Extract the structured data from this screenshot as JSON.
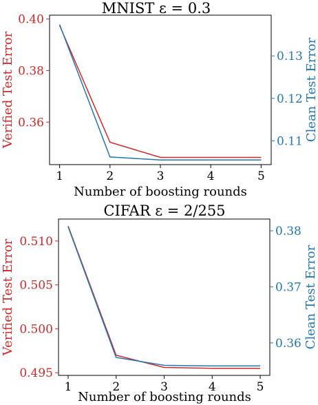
{
  "colors": {
    "left": "#d62728",
    "right": "#1f77b4",
    "axis": "#000000"
  },
  "chart_data": [
    {
      "type": "line",
      "title": "MNIST ε = 0.3",
      "xlabel": "Number of boosting rounds",
      "ylabel_left": "Verified Test Error",
      "ylabel_right": "Clean Test Error",
      "x": [
        1,
        2,
        3,
        4,
        5
      ],
      "xticks": [
        "1",
        "2",
        "3",
        "4",
        "5"
      ],
      "ylim_left": [
        0.3435,
        0.4015
      ],
      "ylim_right": [
        0.1044,
        0.1396
      ],
      "yticks_left": [
        "0.36",
        "0.38",
        "0.40"
      ],
      "yticks_right": [
        "0.11",
        "0.12",
        "0.13"
      ],
      "series": [
        {
          "name": "Verified Test Error",
          "axis": "left",
          "values": [
            0.3975,
            0.3522,
            0.3463,
            0.3463,
            0.3463
          ]
        },
        {
          "name": "Clean Test Error",
          "axis": "right",
          "values": [
            0.1374,
            0.1062,
            0.1055,
            0.1055,
            0.1055
          ]
        }
      ]
    },
    {
      "type": "line",
      "title": "CIFAR ε = 2/255",
      "xlabel": "Number of boosting rounds",
      "ylabel_left": "Verified Test Error",
      "ylabel_right": "Clean Test Error",
      "x": [
        1,
        2,
        3,
        4,
        5
      ],
      "xticks": [
        "1",
        "2",
        "3",
        "4",
        "5"
      ],
      "ylim_left": [
        0.4947,
        0.5125
      ],
      "ylim_right": [
        0.3542,
        0.3821
      ],
      "yticks_left": [
        "0.495",
        "0.500",
        "0.505",
        "0.510"
      ],
      "yticks_right": [
        "0.36",
        "0.37",
        "0.38"
      ],
      "series": [
        {
          "name": "Verified Test Error",
          "axis": "left",
          "values": [
            0.5117,
            0.497,
            0.4956,
            0.4955,
            0.4955
          ]
        },
        {
          "name": "Clean Test Error",
          "axis": "right",
          "values": [
            0.3807,
            0.3574,
            0.356,
            0.3559,
            0.3559
          ]
        }
      ]
    }
  ]
}
